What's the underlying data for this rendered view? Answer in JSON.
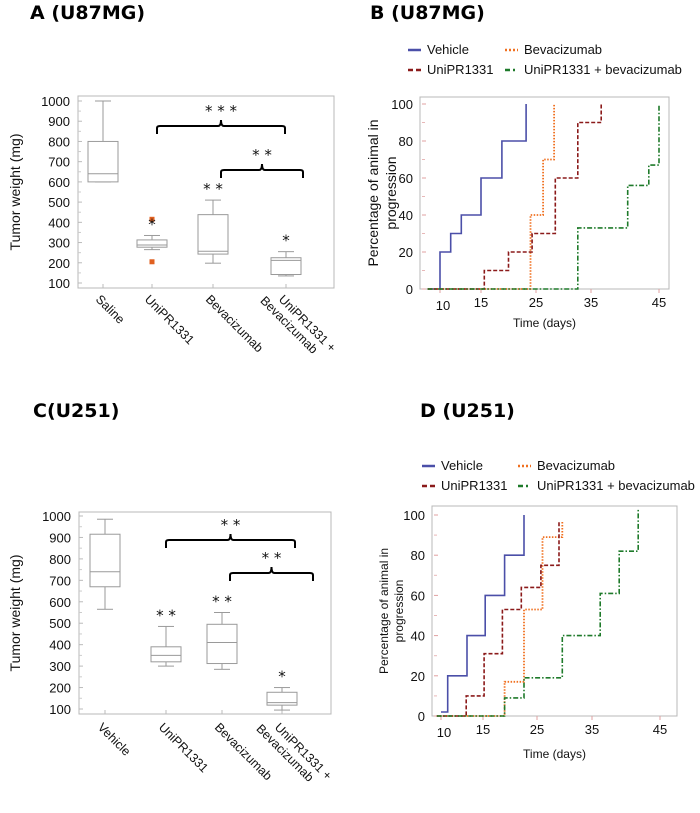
{
  "panels": {
    "A": {
      "title": "A (U87MG)"
    },
    "B": {
      "title": "B (U87MG)"
    },
    "C": {
      "title": "C(U251)"
    },
    "D": {
      "title": "D (U251)"
    }
  },
  "chart_data": [
    {
      "id": "A",
      "type": "box",
      "title": "A (U87MG)",
      "xlabel": "",
      "ylabel": "Tumor weight (mg)",
      "ylim": [
        100,
        1000
      ],
      "yticks": [
        100,
        200,
        300,
        400,
        500,
        600,
        700,
        800,
        900,
        1000
      ],
      "categories": [
        "Saline",
        "UniPR1331",
        "Bevacizumab",
        "UniPR1331 + Bevacizumab"
      ],
      "boxes": [
        {
          "min": 600,
          "q1": 600,
          "median": 640,
          "q3": 800,
          "max": 1000,
          "outliers": [],
          "sig": ""
        },
        {
          "min": 265,
          "q1": 277,
          "median": 288,
          "q3": 313,
          "max": 335,
          "outliers": [
            415,
            205
          ],
          "sig": "*"
        },
        {
          "min": 198,
          "q1": 243,
          "median": 257,
          "q3": 438,
          "max": 510,
          "outliers": [],
          "sig": "**"
        },
        {
          "min": 135,
          "q1": 142,
          "median": 212,
          "q3": 225,
          "max": 255,
          "outliers": [],
          "sig": "*"
        }
      ],
      "comparisons": [
        {
          "from": "UniPR1331",
          "to": "UniPR1331 + Bevacizumab",
          "label": "***"
        },
        {
          "from": "Bevacizumab",
          "to": "UniPR1331 + Bevacizumab",
          "label": "**"
        }
      ],
      "colors": {
        "box": "#9a9a9a",
        "outlier": "#e06020",
        "bracket": "#000000"
      }
    },
    {
      "id": "B",
      "type": "line",
      "subtype": "step",
      "title": "B (U87MG)",
      "xlabel": "Time (days)",
      "ylabel": "Percentage of animal in progression",
      "xticks": [
        10,
        15,
        25,
        35,
        45
      ],
      "yticks": [
        0,
        20,
        40,
        60,
        80,
        100
      ],
      "ylim": [
        0,
        100
      ],
      "legend": "top",
      "series": [
        {
          "name": "Vehicle",
          "color": "#4b4fa8",
          "style": "solid",
          "points": [
            [
              8.5,
              0
            ],
            [
              10,
              0
            ],
            [
              10,
              20
            ],
            [
              11.3,
              20
            ],
            [
              11.3,
              30
            ],
            [
              12.6,
              30
            ],
            [
              12.6,
              40
            ],
            [
              15,
              40
            ],
            [
              15,
              60
            ],
            [
              18.8,
              60
            ],
            [
              18.8,
              80
            ],
            [
              23.2,
              80
            ],
            [
              23.2,
              100
            ]
          ]
        },
        {
          "name": "Bevacizumab",
          "color": "#f07020",
          "style": "dotted",
          "points": [
            [
              8.5,
              0
            ],
            [
              24,
              0
            ],
            [
              24,
              40
            ],
            [
              26.3,
              40
            ],
            [
              26.3,
              70
            ],
            [
              28.3,
              70
            ],
            [
              28.3,
              100
            ]
          ]
        },
        {
          "name": "UniPR1331",
          "color": "#8b1a1a",
          "style": "dashed",
          "points": [
            [
              8.5,
              0
            ],
            [
              15.6,
              0
            ],
            [
              15.6,
              10
            ],
            [
              20,
              10
            ],
            [
              20,
              20
            ],
            [
              24.3,
              20
            ],
            [
              24.3,
              30
            ],
            [
              28.5,
              30
            ],
            [
              28.5,
              60
            ],
            [
              32.6,
              60
            ],
            [
              32.6,
              90
            ],
            [
              36.5,
              90
            ],
            [
              36.5,
              100
            ]
          ]
        },
        {
          "name": "UniPR1331 + bevacizumab",
          "color": "#1e7a2a",
          "style": "dashdot",
          "points": [
            [
              8.5,
              0
            ],
            [
              32.6,
              0
            ],
            [
              32.6,
              33
            ],
            [
              40.4,
              33
            ],
            [
              40.4,
              56
            ],
            [
              43.5,
              56
            ],
            [
              43.5,
              67
            ],
            [
              45,
              67
            ],
            [
              45,
              100
            ]
          ]
        }
      ]
    },
    {
      "id": "C",
      "type": "box",
      "title": "C(U251)",
      "xlabel": "",
      "ylabel": "Tumor weight (mg)",
      "ylim": [
        100,
        1000
      ],
      "yticks": [
        100,
        200,
        300,
        400,
        500,
        600,
        700,
        800,
        900,
        1000
      ],
      "categories": [
        "Vehicle",
        "UniPR1331",
        "Bevacizumab",
        "UniPR1331 + Bevacizumab"
      ],
      "boxes": [
        {
          "min": 565,
          "q1": 670,
          "median": 740,
          "q3": 915,
          "max": 985,
          "outliers": [],
          "sig": ""
        },
        {
          "min": 300,
          "q1": 320,
          "median": 350,
          "q3": 390,
          "max": 485,
          "outliers": [],
          "sig": "**"
        },
        {
          "min": 285,
          "q1": 312,
          "median": 410,
          "q3": 495,
          "max": 550,
          "outliers": [],
          "sig": "**"
        },
        {
          "min": 95,
          "q1": 118,
          "median": 130,
          "q3": 178,
          "max": 200,
          "outliers": [],
          "sig": "*"
        }
      ],
      "comparisons": [
        {
          "from": "UniPR1331",
          "to": "UniPR1331 + Bevacizumab",
          "label": "**"
        },
        {
          "from": "Bevacizumab",
          "to": "UniPR1331 + Bevacizumab",
          "label": "**"
        }
      ],
      "colors": {
        "box": "#9a9a9a",
        "bracket": "#000000"
      }
    },
    {
      "id": "D",
      "type": "line",
      "subtype": "step",
      "title": "D (U251)",
      "xlabel": "Time (days)",
      "ylabel": "Percentage of animal in progression",
      "xticks": [
        10,
        15,
        25,
        35,
        45
      ],
      "yticks": [
        0,
        20,
        40,
        60,
        80,
        100
      ],
      "ylim": [
        0,
        100
      ],
      "legend": "top",
      "series": [
        {
          "name": "Vehicle",
          "color": "#4b4fa8",
          "style": "solid",
          "points": [
            [
              10,
              2
            ],
            [
              10.8,
              2
            ],
            [
              10.8,
              20
            ],
            [
              13.1,
              20
            ],
            [
              13.1,
              40
            ],
            [
              15.4,
              40
            ],
            [
              15.4,
              60
            ],
            [
              19,
              60
            ],
            [
              19,
              80
            ],
            [
              22.6,
              80
            ],
            [
              22.6,
              100
            ]
          ]
        },
        {
          "name": "Bevacizumab",
          "color": "#f07020",
          "style": "dotted",
          "points": [
            [
              9.5,
              0
            ],
            [
              19,
              0
            ],
            [
              19,
              17
            ],
            [
              22.6,
              17
            ],
            [
              22.6,
              53
            ],
            [
              26,
              53
            ],
            [
              26,
              89
            ],
            [
              29.6,
              89
            ],
            [
              29.6,
              97
            ]
          ]
        },
        {
          "name": "UniPR1331",
          "color": "#8b1a1a",
          "style": "dashed",
          "points": [
            [
              9.5,
              0
            ],
            [
              13,
              0
            ],
            [
              13,
              10
            ],
            [
              15.2,
              10
            ],
            [
              15.2,
              31
            ],
            [
              18.6,
              31
            ],
            [
              18.6,
              53
            ],
            [
              22.1,
              53
            ],
            [
              22.1,
              64
            ],
            [
              25.7,
              64
            ],
            [
              25.7,
              75
            ],
            [
              29,
              75
            ],
            [
              29,
              97
            ]
          ]
        },
        {
          "name": "UniPR1331 + bevacizumab",
          "color": "#1e7a2a",
          "style": "dashdot",
          "points": [
            [
              9.5,
              0
            ],
            [
              19,
              0
            ],
            [
              19,
              9
            ],
            [
              22.6,
              9
            ],
            [
              22.6,
              19
            ],
            [
              29.6,
              19
            ],
            [
              29.6,
              40
            ],
            [
              36.2,
              40
            ],
            [
              36.2,
              61
            ],
            [
              39,
              61
            ],
            [
              39,
              82
            ],
            [
              41.8,
              82
            ],
            [
              41.8,
              103
            ]
          ]
        }
      ]
    }
  ]
}
